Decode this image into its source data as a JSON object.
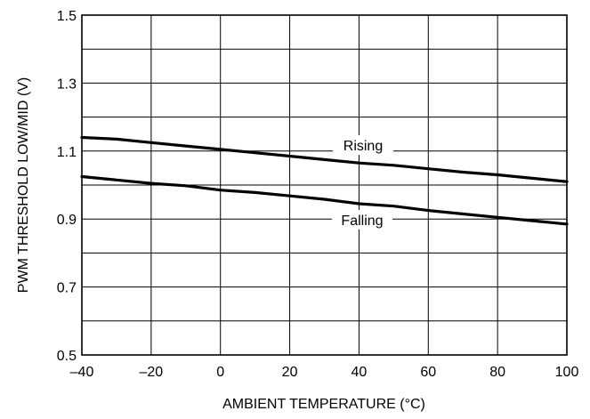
{
  "chart_data": {
    "type": "line",
    "xlabel": "AMBIENT TEMPERATURE (°C)",
    "ylabel": "PWM THRESHOLD LOW/MID (V)",
    "xlim": [
      -40,
      100
    ],
    "ylim": [
      0.5,
      1.5
    ],
    "xticks": [
      -40,
      -20,
      0,
      20,
      40,
      60,
      80,
      100
    ],
    "xtick_labels": [
      "–40",
      "–20",
      "0",
      "20",
      "40",
      "60",
      "80",
      "100"
    ],
    "yticks": [
      0.5,
      0.7,
      0.9,
      1.1,
      1.3,
      1.5
    ],
    "ytick_labels": [
      "0.5",
      "0.7",
      "0.9",
      "1.1",
      "1.3",
      "1.5"
    ],
    "x_grid_step": 20,
    "y_grid_step": 0.1,
    "grid": true,
    "series": [
      {
        "name": "Rising",
        "x": [
          -40,
          -30,
          -20,
          -10,
          0,
          10,
          20,
          30,
          40,
          50,
          60,
          70,
          80,
          90,
          100
        ],
        "y": [
          1.14,
          1.135,
          1.125,
          1.115,
          1.105,
          1.095,
          1.085,
          1.075,
          1.065,
          1.058,
          1.048,
          1.038,
          1.03,
          1.02,
          1.01
        ]
      },
      {
        "name": "Falling",
        "x": [
          -40,
          -30,
          -20,
          -10,
          0,
          10,
          20,
          30,
          40,
          50,
          60,
          70,
          80,
          90,
          100
        ],
        "y": [
          1.025,
          1.015,
          1.005,
          0.998,
          0.985,
          0.978,
          0.968,
          0.958,
          0.945,
          0.938,
          0.925,
          0.915,
          0.905,
          0.895,
          0.885
        ]
      }
    ]
  }
}
